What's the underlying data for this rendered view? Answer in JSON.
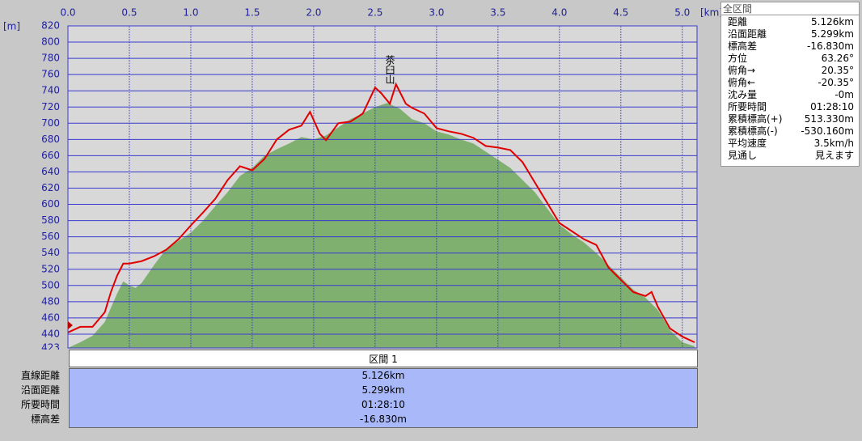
{
  "chart_data": {
    "type": "line",
    "x_unit": "[km]",
    "y_unit": "[m]",
    "annotation": "茶臼山",
    "xlim": [
      0,
      5.12
    ],
    "ylim": [
      423,
      820
    ],
    "xticks": [
      {
        "value": 0,
        "label": "0.0"
      },
      0.5,
      {
        "value": 1,
        "label": "1.0"
      },
      1.5,
      {
        "value": 2,
        "label": "2.0"
      },
      2.5,
      {
        "value": 3,
        "label": "3.0"
      },
      3.5,
      {
        "value": 4,
        "label": "4.0"
      },
      4.5,
      {
        "value": 5,
        "label": "5.0"
      }
    ],
    "yticks": [
      423,
      440,
      460,
      480,
      500,
      520,
      540,
      560,
      580,
      600,
      620,
      640,
      660,
      680,
      700,
      720,
      740,
      760,
      780,
      800,
      820
    ],
    "grid": true,
    "series": [
      {
        "color": "#80b070",
        "fill": true,
        "x": [
          0,
          0.1,
          0.2,
          0.3,
          0.4,
          0.45,
          0.5,
          0.55,
          0.6,
          0.7,
          0.8,
          0.9,
          1.0,
          1.1,
          1.2,
          1.3,
          1.4,
          1.5,
          1.6,
          1.7,
          1.8,
          1.9,
          2.0,
          2.1,
          2.2,
          2.3,
          2.4,
          2.5,
          2.6,
          2.7,
          2.8,
          2.9,
          3.0,
          3.1,
          3.2,
          3.3,
          3.4,
          3.5,
          3.6,
          3.7,
          3.8,
          3.9,
          4.0,
          4.1,
          4.2,
          4.3,
          4.4,
          4.5,
          4.6,
          4.7,
          4.8,
          4.9,
          5.0,
          5.1
        ],
        "values": [
          423,
          430,
          438,
          455,
          490,
          505,
          500,
          497,
          503,
          525,
          545,
          555,
          565,
          580,
          598,
          615,
          635,
          645,
          660,
          668,
          675,
          683,
          680,
          685,
          695,
          705,
          712,
          720,
          725,
          718,
          705,
          700,
          690,
          686,
          680,
          675,
          665,
          655,
          645,
          630,
          615,
          595,
          575,
          563,
          553,
          540,
          525,
          510,
          495,
          485,
          470,
          445,
          430,
          425
        ]
      },
      {
        "color": "#e00000",
        "fill": false,
        "x": [
          0,
          0.1,
          0.2,
          0.3,
          0.35,
          0.4,
          0.45,
          0.5,
          0.6,
          0.7,
          0.8,
          0.9,
          1.0,
          1.1,
          1.2,
          1.3,
          1.4,
          1.5,
          1.6,
          1.7,
          1.8,
          1.9,
          1.97,
          2.05,
          2.1,
          2.2,
          2.3,
          2.4,
          2.5,
          2.55,
          2.62,
          2.67,
          2.75,
          2.8,
          2.9,
          3.0,
          3.1,
          3.2,
          3.3,
          3.4,
          3.5,
          3.6,
          3.7,
          3.8,
          3.9,
          4.0,
          4.1,
          4.2,
          4.3,
          4.4,
          4.5,
          4.6,
          4.7,
          4.75,
          4.8,
          4.9,
          5.0,
          5.1
        ],
        "values": [
          442,
          449,
          449,
          467,
          492,
          512,
          527,
          527,
          530,
          536,
          544,
          557,
          574,
          590,
          607,
          630,
          647,
          642,
          656,
          680,
          692,
          697,
          714,
          687,
          679,
          700,
          702,
          712,
          744,
          737,
          724,
          748,
          724,
          719,
          712,
          694,
          690,
          687,
          682,
          672,
          670,
          667,
          652,
          627,
          602,
          577,
          567,
          557,
          550,
          522,
          507,
          492,
          487,
          492,
          474,
          447,
          437,
          430
        ]
      }
    ]
  },
  "section": {
    "title": "区間 1",
    "rows": [
      [
        "直線距離",
        "5.126km"
      ],
      [
        "沿面距離",
        "5.299km"
      ],
      [
        "所要時間",
        "01:28:10"
      ],
      [
        "標高差",
        "-16.830m"
      ]
    ]
  },
  "summary": {
    "title": "全区間",
    "rows": [
      [
        "距離",
        "5.126km"
      ],
      [
        "沿面距離",
        "5.299km"
      ],
      [
        "標高差",
        "-16.830m"
      ],
      [
        "方位",
        "63.26°"
      ],
      [
        "俯角→",
        "20.35°"
      ],
      [
        "俯角←",
        "-20.35°"
      ],
      [
        "沈み量",
        "-0m"
      ],
      [
        "所要時間",
        "01:28:10"
      ],
      [
        "累積標高(+)",
        "513.330m"
      ],
      [
        "累積標高(-)",
        "-530.160m"
      ],
      [
        "平均速度",
        "3.5km/h"
      ],
      [
        "見通し",
        "見えます"
      ]
    ]
  }
}
